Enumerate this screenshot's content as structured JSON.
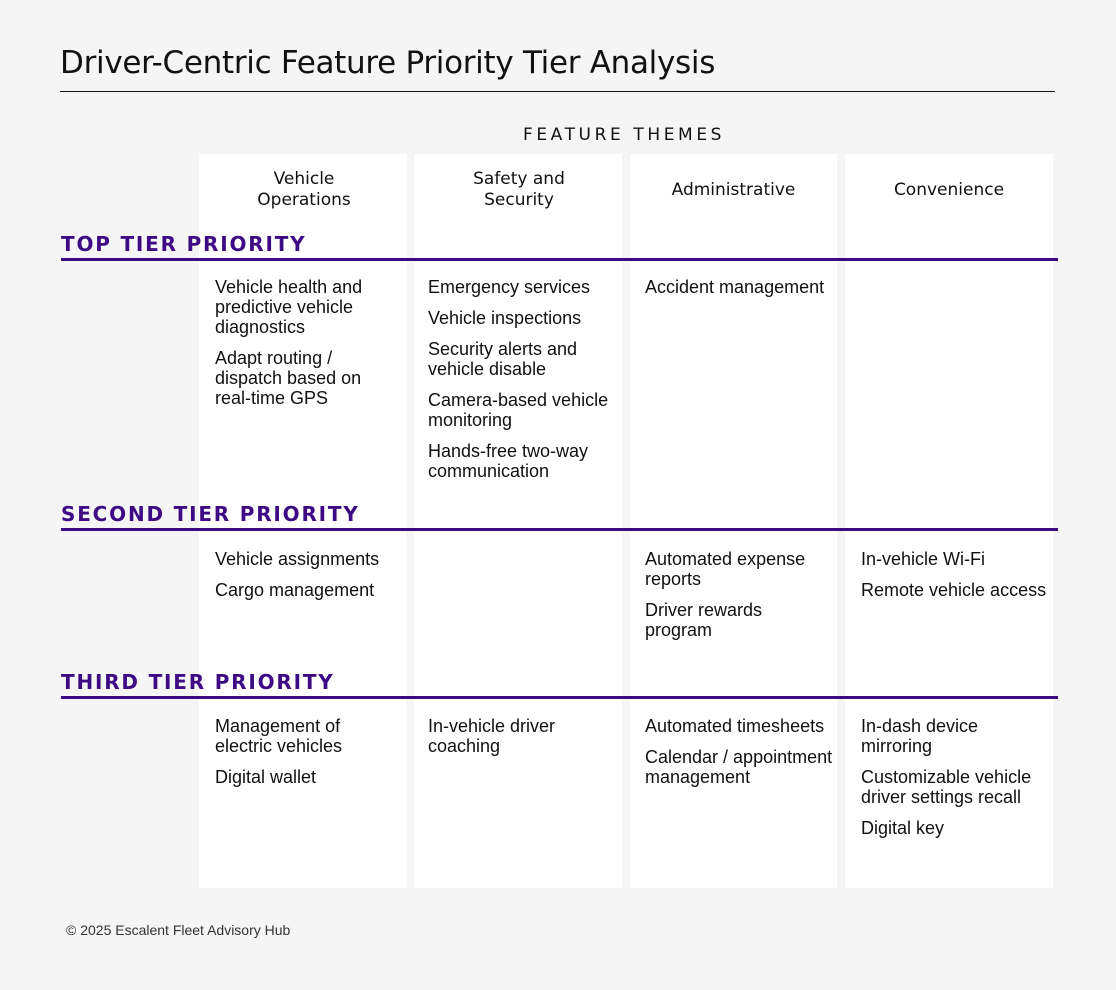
{
  "title": "Driver-Centric Feature Priority Tier Analysis",
  "themes_heading": "FEATURE THEMES",
  "columns": [
    {
      "label": "Vehicle Operations"
    },
    {
      "label": "Safety and Security"
    },
    {
      "label": "Administrative"
    },
    {
      "label": "Convenience"
    }
  ],
  "tiers": [
    {
      "label": "TOP TIER PRIORITY",
      "cells": [
        [
          "Vehicle health and predictive vehicle diagnostics",
          "Adapt routing / dispatch based on real-time GPS"
        ],
        [
          "Emergency services",
          "Vehicle inspections",
          "Security alerts and vehicle disable",
          "Camera-based vehicle monitoring",
          "Hands-free two-way communication"
        ],
        [
          "Accident management"
        ],
        []
      ]
    },
    {
      "label": "SECOND TIER PRIORITY",
      "cells": [
        [
          "Vehicle assignments",
          "Cargo management"
        ],
        [],
        [
          "Automated expense reports",
          "Driver rewards program"
        ],
        [
          "In-vehicle Wi-Fi",
          "Remote vehicle access"
        ]
      ]
    },
    {
      "label": "THIRD TIER PRIORITY",
      "cells": [
        [
          "Management of electric vehicles",
          "Digital wallet"
        ],
        [
          "In-vehicle driver coaching"
        ],
        [
          "Automated timesheets",
          "Calendar / appointment management"
        ],
        [
          "In-dash device mirroring",
          "Customizable vehicle driver settings recall",
          "Digital key"
        ]
      ]
    }
  ],
  "footer": "© 2025 Escalent Fleet Advisory Hub",
  "colors": {
    "accent": "#3d0a84",
    "background": "#f4f5f4",
    "panel": "#ffffff"
  }
}
